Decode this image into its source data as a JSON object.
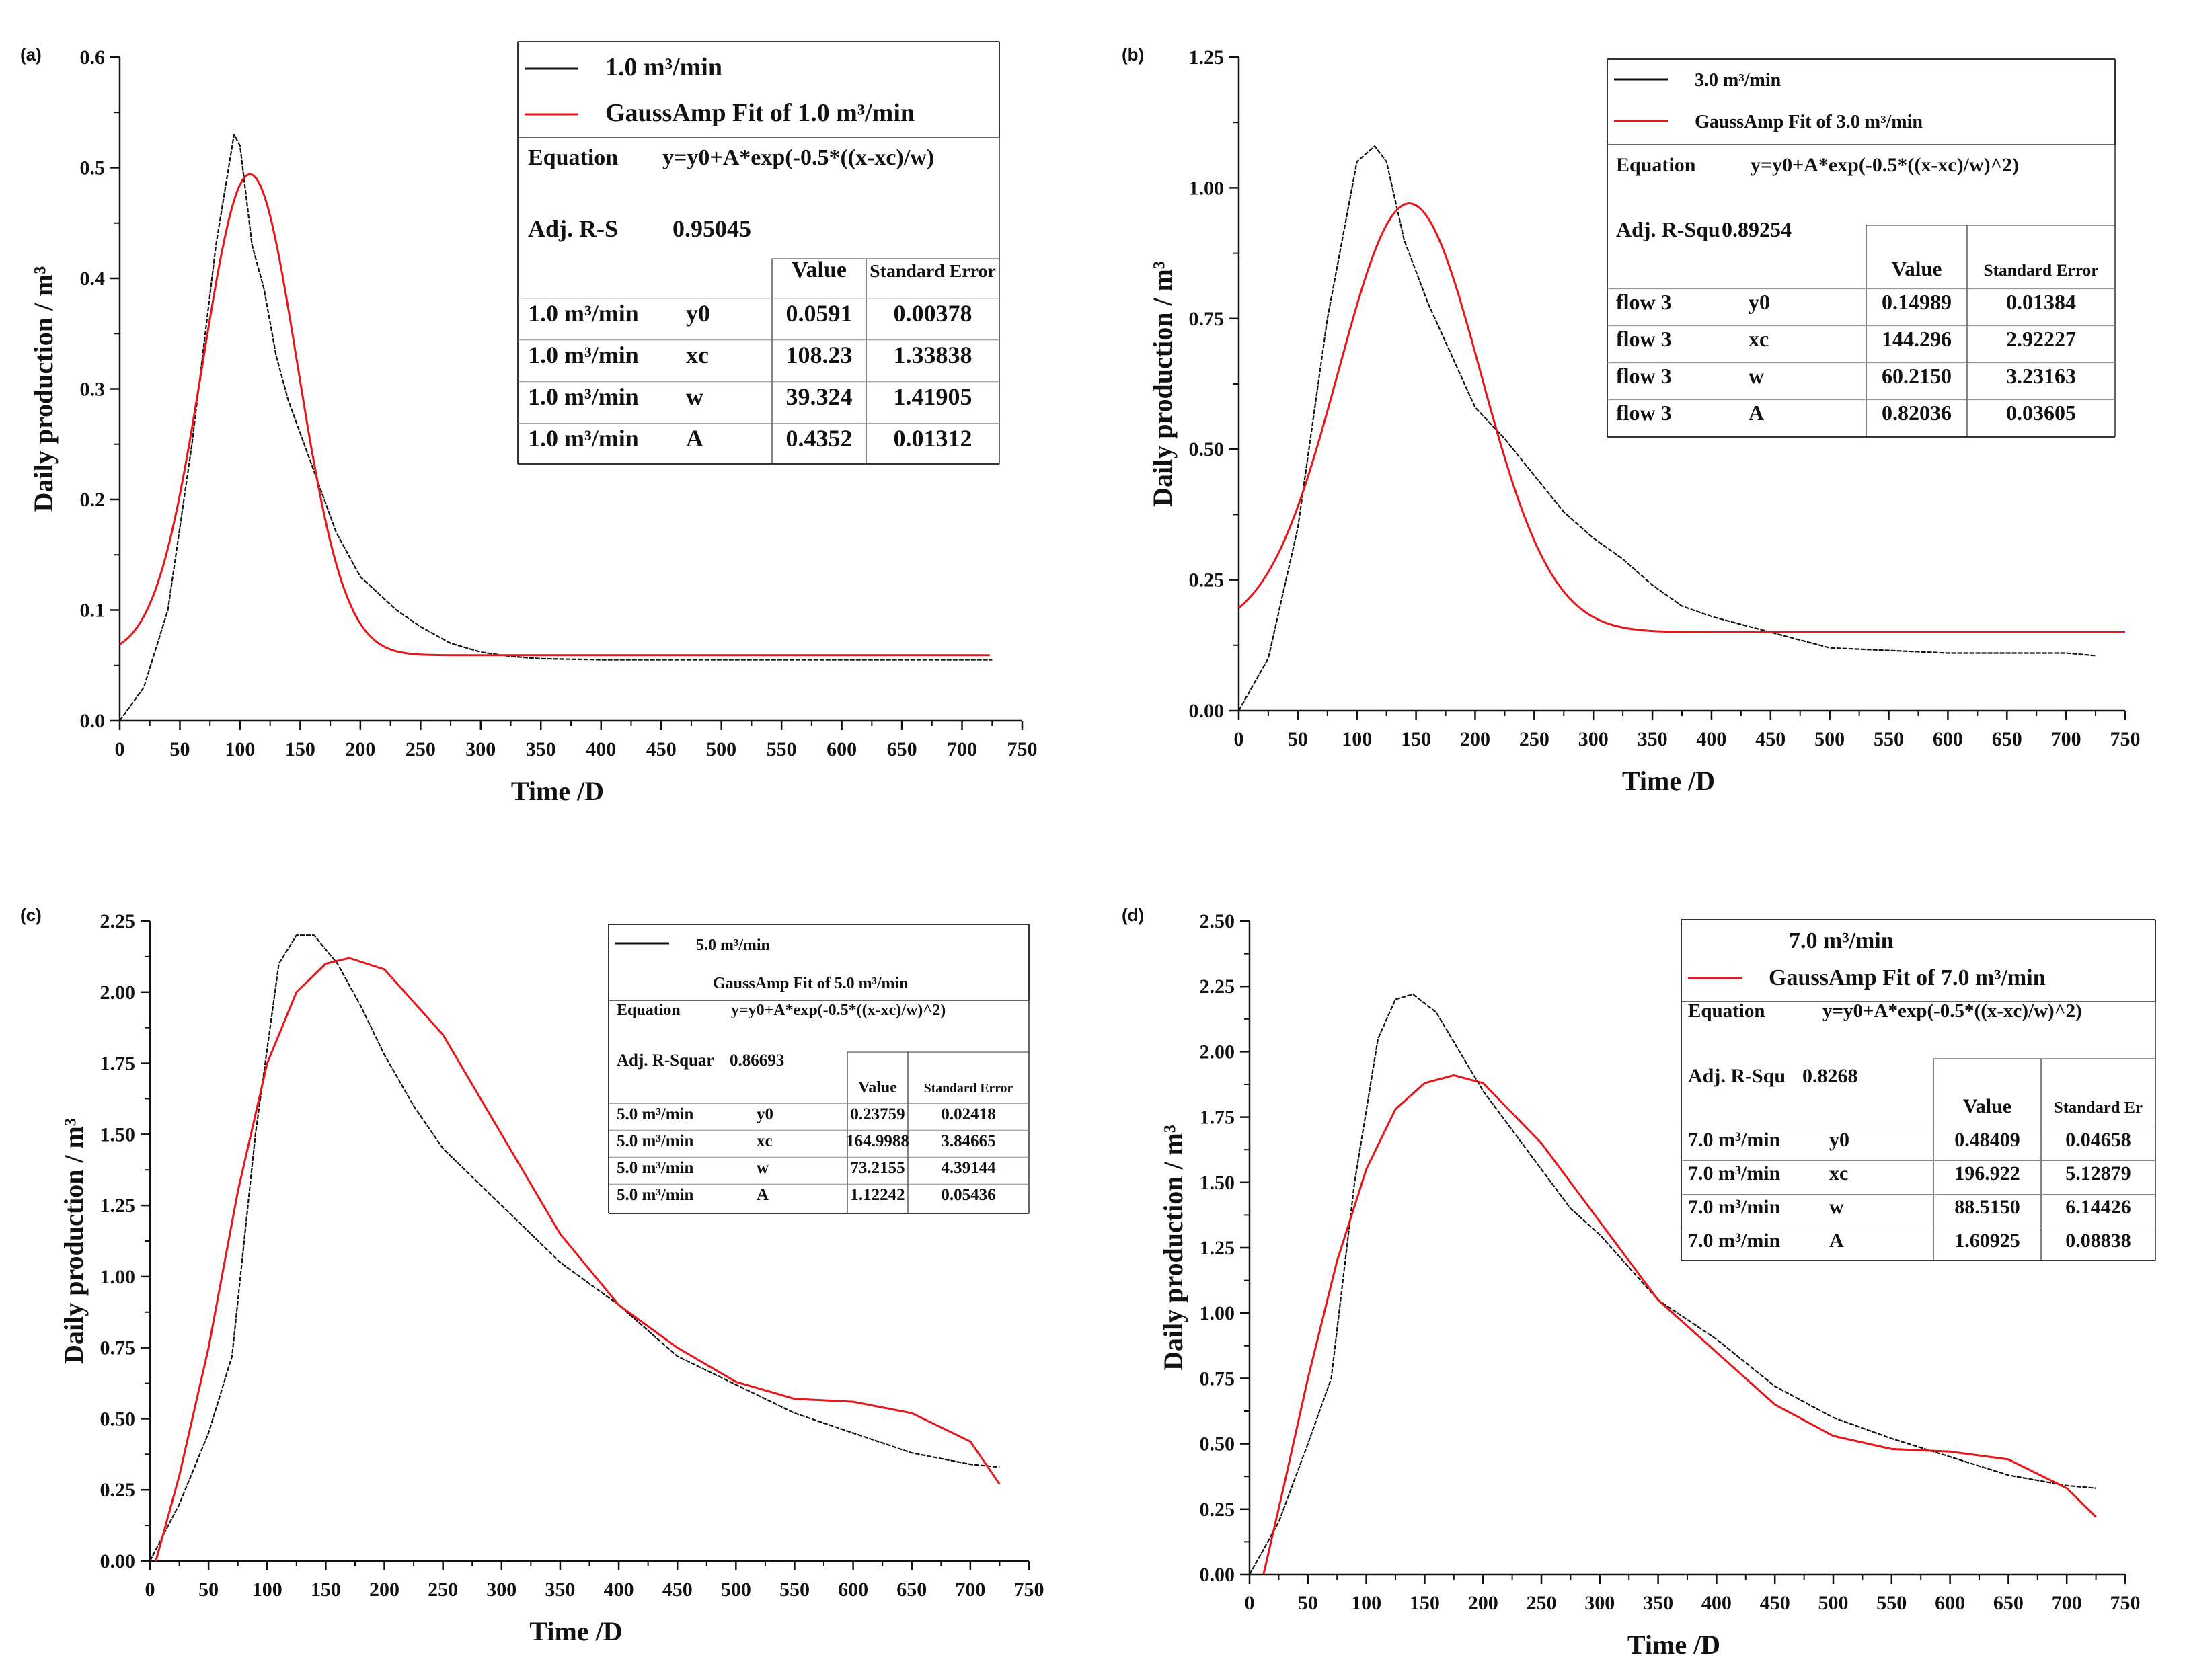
{
  "figure": {
    "panels": 4
  },
  "colors": {
    "data_line": "#111111",
    "fit_line": "#e8151b",
    "axis": "#111111",
    "table_border": "#333333"
  },
  "chart_data": [
    {
      "panel": "(a)",
      "type": "line",
      "xlabel": "Time /D",
      "ylabel": "Daily production / m³",
      "xlim": [
        0,
        750
      ],
      "ylim": [
        0,
        0.6
      ],
      "xticks": [
        "0",
        "50",
        "100",
        "150",
        "200",
        "250",
        "300",
        "350",
        "400",
        "450",
        "500",
        "550",
        "600",
        "650",
        "700",
        "750"
      ],
      "yticks": [
        "0.0",
        "0.1",
        "0.2",
        "0.3",
        "0.4",
        "0.5",
        "0.6"
      ],
      "series": [
        {
          "name": "1.0 m³/min",
          "role": "data",
          "x": [
            0,
            20,
            40,
            60,
            80,
            95,
            100,
            110,
            120,
            130,
            140,
            150,
            160,
            170,
            180,
            200,
            210,
            230,
            250,
            275,
            300,
            325,
            350,
            400,
            450,
            500,
            550,
            600,
            650,
            700,
            725
          ],
          "y": [
            0,
            0.03,
            0.1,
            0.25,
            0.43,
            0.53,
            0.52,
            0.43,
            0.39,
            0.33,
            0.29,
            0.26,
            0.23,
            0.2,
            0.17,
            0.13,
            0.12,
            0.1,
            0.085,
            0.07,
            0.062,
            0.058,
            0.056,
            0.055,
            0.055,
            0.055,
            0.055,
            0.055,
            0.055,
            0.055,
            0.055
          ]
        },
        {
          "name": "GaussAmp Fit of 1.0 m³/min",
          "role": "fit",
          "model": "gauss",
          "params": {
            "y0": 0.0591,
            "xc": 108.23,
            "w": 39.324,
            "A": 0.4352
          },
          "x_range": [
            0,
            725
          ]
        }
      ],
      "legend": {
        "entries": [
          "1.0 m³/min",
          "GaussAmp Fit of 1.0 m³/min"
        ],
        "equation_label": "Equation",
        "equation": "y=y0+A*exp(-0.5*((x-xc)/w)",
        "adjr_label": "Adj. R-S",
        "adjr_value": "0.95045",
        "col_value": "Value",
        "col_error": "Standard Error",
        "rows": [
          {
            "name": "1.0 m³/min",
            "param": "y0",
            "value": "0.0591",
            "error": "0.00378"
          },
          {
            "name": "1.0 m³/min",
            "param": "xc",
            "value": "108.23",
            "error": "1.33838"
          },
          {
            "name": "1.0 m³/min",
            "param": "w",
            "value": "39.324",
            "error": "1.41905"
          },
          {
            "name": "1.0 m³/min",
            "param": "A",
            "value": "0.4352",
            "error": "0.01312"
          }
        ]
      }
    },
    {
      "panel": "(b)",
      "type": "line",
      "xlabel": "Time /D",
      "ylabel": "Daily production / m³",
      "xlim": [
        0,
        750
      ],
      "ylim": [
        0,
        1.25
      ],
      "xticks": [
        "0",
        "50",
        "100",
        "150",
        "200",
        "250",
        "300",
        "350",
        "400",
        "450",
        "500",
        "550",
        "600",
        "650",
        "700",
        "750"
      ],
      "yticks": [
        "0.00",
        "0.25",
        "0.50",
        "0.75",
        "1.00",
        "1.25"
      ],
      "series": [
        {
          "name": "3.0 m³/min",
          "role": "data",
          "x": [
            0,
            25,
            50,
            75,
            100,
            115,
            125,
            140,
            160,
            180,
            200,
            225,
            250,
            275,
            300,
            325,
            350,
            375,
            400,
            450,
            500,
            550,
            600,
            650,
            700,
            725
          ],
          "y": [
            0,
            0.1,
            0.35,
            0.75,
            1.05,
            1.08,
            1.05,
            0.9,
            0.78,
            0.68,
            0.58,
            0.52,
            0.45,
            0.38,
            0.33,
            0.29,
            0.24,
            0.2,
            0.18,
            0.15,
            0.12,
            0.115,
            0.11,
            0.11,
            0.11,
            0.105
          ]
        },
        {
          "name": "GaussAmp Fit of 3.0 m³/min",
          "role": "fit",
          "model": "gauss",
          "params": {
            "y0": 0.14989,
            "xc": 144.296,
            "w": 60.215,
            "A": 0.82036
          },
          "x_range": [
            0,
            750
          ]
        }
      ],
      "legend": {
        "entries": [
          "3.0 m³/min",
          "GaussAmp Fit of 3.0 m³/min"
        ],
        "equation_label": "Equation",
        "equation": "y=y0+A*exp(-0.5*((x-xc)/w)^2)",
        "adjr_label": "Adj. R-Squ",
        "adjr_value": "0.89254",
        "col_value": "Value",
        "col_error": "Standard Error",
        "rows": [
          {
            "name": "flow 3",
            "param": "y0",
            "value": "0.14989",
            "error": "0.01384"
          },
          {
            "name": "flow 3",
            "param": "xc",
            "value": "144.296",
            "error": "2.92227"
          },
          {
            "name": "flow 3",
            "param": "w",
            "value": "60.2150",
            "error": "3.23163"
          },
          {
            "name": "flow 3",
            "param": "A",
            "value": "0.82036",
            "error": "0.03605"
          }
        ]
      }
    },
    {
      "panel": "(c)",
      "type": "line",
      "xlabel": "Time /D",
      "ylabel": "Daily production / m³",
      "xlim": [
        0,
        750
      ],
      "ylim": [
        0,
        2.25
      ],
      "xticks": [
        "0",
        "50",
        "100",
        "150",
        "200",
        "250",
        "300",
        "350",
        "400",
        "450",
        "500",
        "550",
        "600",
        "650",
        "700",
        "750"
      ],
      "yticks": [
        "0.00",
        "0.25",
        "0.50",
        "0.75",
        "1.00",
        "1.25",
        "1.50",
        "1.75",
        "2.00",
        "2.25"
      ],
      "series": [
        {
          "name": "5.0 m³/min",
          "role": "data",
          "x": [
            0,
            25,
            50,
            70,
            90,
            110,
            125,
            140,
            160,
            180,
            200,
            225,
            250,
            275,
            300,
            350,
            400,
            450,
            500,
            550,
            600,
            650,
            700,
            725
          ],
          "y": [
            0,
            0.2,
            0.45,
            0.72,
            1.5,
            2.1,
            2.2,
            2.2,
            2.1,
            1.95,
            1.78,
            1.6,
            1.45,
            1.35,
            1.25,
            1.05,
            0.9,
            0.72,
            0.62,
            0.52,
            0.45,
            0.38,
            0.34,
            0.33
          ]
        },
        {
          "name": "GaussAmp Fit of 5.0 m³/min",
          "role": "fit",
          "x": [
            5,
            25,
            50,
            75,
            100,
            125,
            150,
            170,
            200,
            250,
            300,
            350,
            400,
            450,
            500,
            550,
            600,
            650,
            700,
            725
          ],
          "y": [
            0,
            0.3,
            0.75,
            1.3,
            1.75,
            2.0,
            2.1,
            2.12,
            2.08,
            1.85,
            1.5,
            1.15,
            0.9,
            0.75,
            0.63,
            0.57,
            0.56,
            0.52,
            0.42,
            0.27
          ]
        }
      ],
      "legend": {
        "entries": [
          "5.0 m³/min",
          "GaussAmp Fit of 5.0 m³/min"
        ],
        "equation_label": "Equation",
        "equation": "y=y0+A*exp(-0.5*((x-xc)/w)^2)",
        "adjr_label": "Adj. R-Squar",
        "adjr_value": "0.86693",
        "col_value": "Value",
        "col_error": "Standard Error",
        "rows": [
          {
            "name": "5.0 m³/min",
            "param": "y0",
            "value": "0.23759",
            "error": "0.02418"
          },
          {
            "name": "5.0 m³/min",
            "param": "xc",
            "value": "164.9988",
            "error": "3.84665"
          },
          {
            "name": "5.0 m³/min",
            "param": "w",
            "value": "73.2155",
            "error": "4.39144"
          },
          {
            "name": "5.0 m³/min",
            "param": "A",
            "value": "1.12242",
            "error": "0.05436"
          }
        ]
      }
    },
    {
      "panel": "(d)",
      "type": "line",
      "xlabel": "Time /D",
      "ylabel": "Daily production / m³",
      "xlim": [
        0,
        750
      ],
      "ylim": [
        0,
        2.5
      ],
      "xticks": [
        "0",
        "50",
        "100",
        "150",
        "200",
        "250",
        "300",
        "350",
        "400",
        "450",
        "500",
        "550",
        "600",
        "650",
        "700",
        "750"
      ],
      "yticks": [
        "0.00",
        "0.25",
        "0.50",
        "0.75",
        "1.00",
        "1.25",
        "1.50",
        "1.75",
        "2.00",
        "2.25",
        "2.50"
      ],
      "series": [
        {
          "name": "7.0 m³/min",
          "role": "data",
          "x": [
            0,
            25,
            50,
            70,
            90,
            110,
            125,
            140,
            160,
            180,
            200,
            225,
            250,
            275,
            300,
            350,
            400,
            450,
            500,
            550,
            600,
            650,
            700,
            725
          ],
          "y": [
            0,
            0.2,
            0.5,
            0.75,
            1.5,
            2.05,
            2.2,
            2.22,
            2.15,
            2.0,
            1.85,
            1.7,
            1.55,
            1.4,
            1.3,
            1.05,
            0.9,
            0.72,
            0.6,
            0.52,
            0.45,
            0.38,
            0.34,
            0.33
          ]
        },
        {
          "name": "GaussAmp Fit of 7.0 m³/min",
          "role": "fit",
          "x": [
            12,
            30,
            50,
            75,
            100,
            125,
            150,
            175,
            200,
            250,
            300,
            350,
            400,
            450,
            500,
            550,
            600,
            650,
            700,
            725
          ],
          "y": [
            0,
            0.35,
            0.75,
            1.2,
            1.55,
            1.78,
            1.88,
            1.91,
            1.88,
            1.65,
            1.35,
            1.05,
            0.85,
            0.65,
            0.53,
            0.48,
            0.47,
            0.44,
            0.33,
            0.22
          ]
        }
      ],
      "legend": {
        "entries": [
          "7.0 m³/min",
          "GaussAmp Fit of 7.0 m³/min"
        ],
        "equation_label": "Equation",
        "equation": "y=y0+A*exp(-0.5*((x-xc)/w)^2)",
        "adjr_label": "Adj. R-Squ",
        "adjr_value": "0.8268",
        "col_value": "Value",
        "col_error": "Standard Er",
        "rows": [
          {
            "name": "7.0 m³/min",
            "param": "y0",
            "value": "0.48409",
            "error": "0.04658"
          },
          {
            "name": "7.0 m³/min",
            "param": "xc",
            "value": "196.922",
            "error": "5.12879"
          },
          {
            "name": "7.0 m³/min",
            "param": "w",
            "value": "88.5150",
            "error": "6.14426"
          },
          {
            "name": "7.0 m³/min",
            "param": "A",
            "value": "1.60925",
            "error": "0.08838"
          }
        ]
      }
    }
  ]
}
